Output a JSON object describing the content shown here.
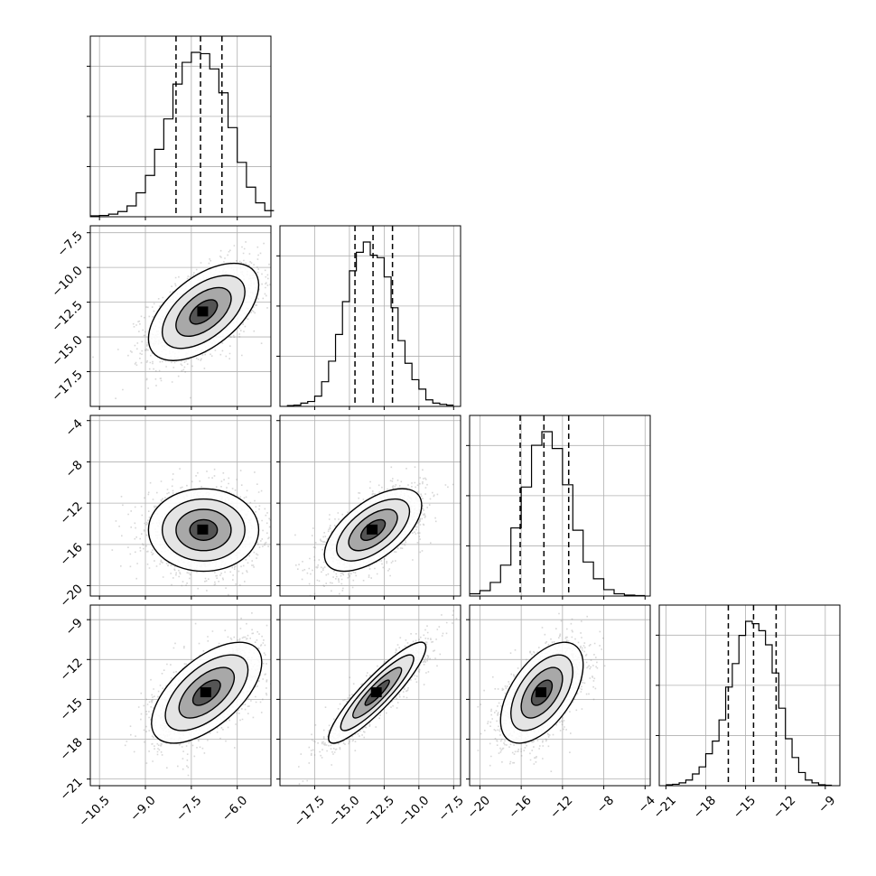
{
  "chart_data": {
    "type": "corner",
    "title": "",
    "n_params": 4,
    "axis_labels": [
      "",
      "",
      "",
      ""
    ],
    "ranges": [
      [
        -10.8,
        -4.9
      ],
      [
        -20.0,
        -7.0
      ],
      [
        -21.0,
        -3.5
      ],
      [
        -21.5,
        -7.9
      ]
    ],
    "ticks": [
      [
        "-10.5",
        "-9.0",
        "-7.5",
        "-6.0"
      ],
      [
        "-17.5",
        "-15.0",
        "-12.5",
        "-10.0",
        "-7.5"
      ],
      [
        "-20",
        "-16",
        "-12",
        "-8",
        "-4"
      ],
      [
        "-21",
        "-18",
        "-15",
        "-12",
        "-9"
      ]
    ],
    "quantiles": [
      [
        -8.0,
        -7.2,
        -6.5
      ],
      [
        -14.6,
        -13.3,
        -11.9
      ],
      [
        -16.1,
        -13.8,
        -11.4
      ],
      [
        -16.3,
        -14.4,
        -12.7
      ]
    ],
    "marginals": [
      {
        "bin_edges": [
          -10.8,
          -10.5,
          -10.2,
          -9.9,
          -9.6,
          -9.3,
          -9.0,
          -8.7,
          -8.4,
          -8.1,
          -7.8,
          -7.5,
          -7.2,
          -6.9,
          -6.6,
          -6.3,
          -6.0,
          -5.7,
          -5.4,
          -5.1,
          -4.8
        ],
        "counts": [
          2,
          3,
          6,
          12,
          25,
          55,
          95,
          155,
          225,
          305,
          355,
          378,
          375,
          340,
          285,
          205,
          125,
          68,
          32,
          14
        ]
      },
      {
        "bin_edges": [
          -19.5,
          -19.0,
          -18.5,
          -18.0,
          -17.5,
          -17.0,
          -16.5,
          -16.0,
          -15.5,
          -15.0,
          -14.5,
          -14.0,
          -13.5,
          -13.0,
          -12.5,
          -12.0,
          -11.5,
          -11.0,
          -10.5,
          -10.0,
          -9.5,
          -9.0,
          -8.5,
          -8.0,
          -7.5
        ],
        "counts": [
          2,
          3,
          8,
          12,
          25,
          60,
          110,
          175,
          255,
          330,
          375,
          400,
          368,
          362,
          315,
          240,
          160,
          105,
          65,
          42,
          16,
          8,
          5,
          3
        ]
      },
      {
        "bin_edges": [
          -21,
          -20,
          -19,
          -18,
          -17,
          -16,
          -15,
          -14,
          -13,
          -12,
          -11,
          -10,
          -9,
          -8,
          -7,
          -6,
          -5,
          -4
        ],
        "counts": [
          5,
          12,
          30,
          68,
          150,
          240,
          332,
          362,
          325,
          245,
          145,
          75,
          38,
          14,
          5,
          2,
          1
        ]
      },
      {
        "bin_edges": [
          -21.0,
          -20.5,
          -20.0,
          -19.5,
          -19.0,
          -18.5,
          -18.0,
          -17.5,
          -17.0,
          -16.5,
          -16.0,
          -15.5,
          -15.0,
          -14.5,
          -14.0,
          -13.5,
          -13.0,
          -12.5,
          -12.0,
          -11.5,
          -11.0,
          -10.5,
          -10.0,
          -9.5,
          -9.0,
          -8.5
        ],
        "counts": [
          2,
          3,
          6,
          12,
          25,
          40,
          68,
          95,
          140,
          210,
          260,
          320,
          350,
          345,
          330,
          300,
          240,
          165,
          100,
          60,
          28,
          12,
          6,
          2,
          1
        ]
      }
    ],
    "pairs": [
      {
        "row": 1,
        "col": 0,
        "center": [
          -7.1,
          -13.2
        ],
        "sd": [
          0.9,
          1.75
        ],
        "corr": 0.55
      },
      {
        "row": 2,
        "col": 0,
        "center": [
          -7.1,
          -14.6
        ],
        "sd": [
          0.9,
          2.0
        ],
        "corr": 0.0
      },
      {
        "row": 2,
        "col": 1,
        "center": [
          -13.3,
          -14.6
        ],
        "sd": [
          1.75,
          2.0
        ],
        "corr": 0.6
      },
      {
        "row": 3,
        "col": 0,
        "center": [
          -7.0,
          -14.5
        ],
        "sd": [
          0.9,
          1.9
        ],
        "corr": 0.6
      },
      {
        "row": 3,
        "col": 1,
        "center": [
          -13.0,
          -14.5
        ],
        "sd": [
          1.75,
          1.9
        ],
        "corr": 0.9
      },
      {
        "row": 3,
        "col": 2,
        "center": [
          -14.0,
          -14.5
        ],
        "sd": [
          2.0,
          1.9
        ],
        "corr": 0.55
      }
    ],
    "grid": true,
    "legend": false,
    "colors": {
      "line": "#000000",
      "grid": "#b0b0b0",
      "points": "#8c8c8c",
      "density": "#000000"
    }
  }
}
